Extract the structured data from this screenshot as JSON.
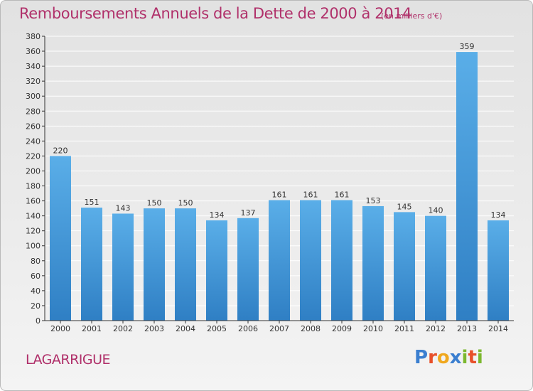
{
  "header": {
    "title": "Remboursements Annuels de la Dette de 2000 à 2014",
    "unit": "(en milliers d'€)"
  },
  "footer": {
    "commune": "LAGARRIGUE",
    "logo_text": "Proxiti",
    "logo_colors": [
      "#3b7fd0",
      "#e8502a",
      "#f0a81e",
      "#3b7fd0",
      "#7cb82f",
      "#e8502a",
      "#7cb82f"
    ]
  },
  "colors": {
    "bar_light": "#5aaee8",
    "bar_dark": "#2f7fc4",
    "grid": "#ffffff",
    "axis": "#333333",
    "title": "#b0306a"
  },
  "chart_data": {
    "type": "bar",
    "categories": [
      "2000",
      "2001",
      "2002",
      "2003",
      "2004",
      "2005",
      "2006",
      "2007",
      "2008",
      "2009",
      "2010",
      "2011",
      "2012",
      "2013",
      "2014"
    ],
    "values": [
      220,
      151,
      143,
      150,
      150,
      134,
      137,
      161,
      161,
      161,
      153,
      145,
      140,
      359,
      134
    ],
    "title": "Remboursements Annuels de la Dette de 2000 à 2014",
    "xlabel": "",
    "ylabel": "",
    "ylim": [
      0,
      380
    ],
    "ytick_step": 20,
    "grid": true
  }
}
